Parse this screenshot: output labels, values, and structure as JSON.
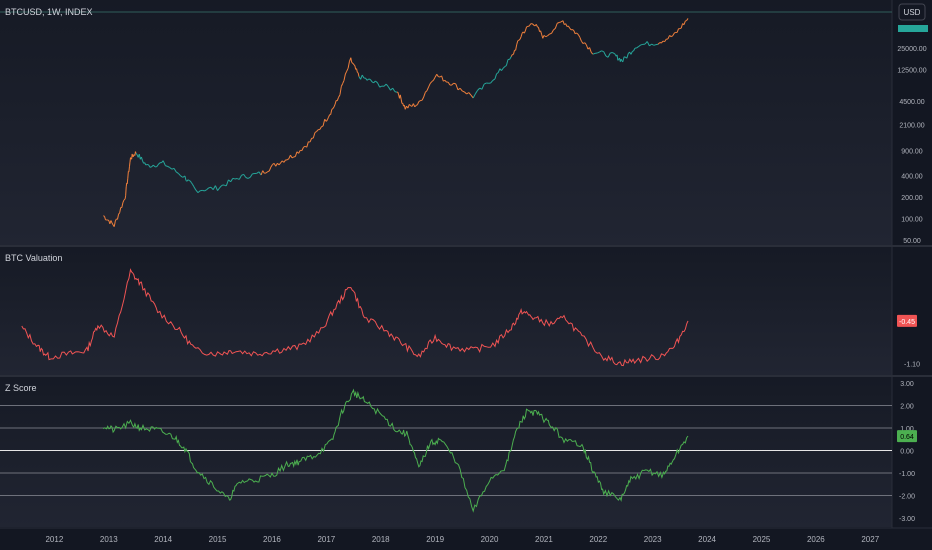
{
  "header": {
    "symbol": "BTCUSD, 1W, INDEX",
    "currency": "USD"
  },
  "colors": {
    "background": "#161a25",
    "pane_bg_top": "#1b1f2b",
    "grid": "#2a2e39",
    "axis_text": "#b2b5be",
    "price_warm": "#f0803c",
    "price_cool": "#26a69a",
    "valuation_line": "#f05454",
    "zscore_line": "#4caf50",
    "level_lines": "#8a8d96",
    "zero_line": "#e6e6e6",
    "badge_red": "#f05454",
    "badge_green": "#4caf50",
    "last_price_bar": "#26a69a"
  },
  "x_axis": {
    "tick_labels": [
      "2012",
      "2013",
      "2014",
      "2015",
      "2016",
      "2017",
      "2018",
      "2019",
      "2020",
      "2021",
      "2022",
      "2023",
      "2024",
      "2025",
      "2026",
      "2027"
    ]
  },
  "chart_data": [
    {
      "type": "line",
      "title": "BTCUSD, 1W, INDEX",
      "scale": "log",
      "y_tick_labels": [
        "25000.00",
        "12500.00",
        "4500.00",
        "2100.00",
        "900.00",
        "400.00",
        "200.00",
        "100.00",
        "50.00"
      ],
      "series": [
        {
          "x": [
            2013.4,
            2013.6,
            2013.8,
            2013.9,
            2014.0,
            2014.2,
            2014.5,
            2014.9,
            2015.1,
            2015.5,
            2015.9,
            2016.3,
            2016.6,
            2016.9,
            2017.2,
            2017.5,
            2017.7,
            2017.95,
            2018.1,
            2018.4,
            2018.8,
            2018.95,
            2019.2,
            2019.5,
            2019.8,
            2020.2,
            2020.6,
            2020.9,
            2021.1,
            2021.3,
            2021.5,
            2021.85,
            2022.1,
            2022.4,
            2022.8,
            2022.95,
            2023.2,
            2023.6,
            2023.9,
            2024.15
          ],
          "y": [
            110,
            80,
            200,
            700,
            850,
            550,
            600,
            380,
            250,
            270,
            380,
            430,
            600,
            780,
            1200,
            2500,
            4500,
            17000,
            10000,
            8000,
            6300,
            3600,
            4100,
            10500,
            8000,
            5200,
            9800,
            18000,
            40000,
            58000,
            35000,
            60000,
            40000,
            22000,
            19500,
            16500,
            27000,
            30000,
            38000,
            65000
          ]
        }
      ]
    },
    {
      "type": "line",
      "title": "BTC Valuation",
      "y_tick_labels": [
        "-1.10"
      ],
      "last_value_label": "-0.45",
      "series": [
        {
          "x": [
            2011.9,
            2012.2,
            2012.4,
            2012.8,
            2013.1,
            2013.3,
            2013.6,
            2013.9,
            2014.1,
            2014.4,
            2014.8,
            2015.1,
            2015.5,
            2015.8,
            2016.2,
            2016.6,
            2017.0,
            2017.4,
            2017.7,
            2017.95,
            2018.2,
            2018.6,
            2018.9,
            2019.2,
            2019.5,
            2019.8,
            2020.2,
            2020.6,
            2020.9,
            2021.1,
            2021.3,
            2021.6,
            2021.9,
            2022.2,
            2022.6,
            2022.9,
            2023.2,
            2023.6,
            2023.9,
            2024.15
          ],
          "y": [
            -0.55,
            -0.85,
            -1.0,
            -0.95,
            -0.9,
            -0.5,
            -0.7,
            0.3,
            0.1,
            -0.3,
            -0.6,
            -0.9,
            -0.95,
            -0.9,
            -0.95,
            -0.9,
            -0.85,
            -0.6,
            -0.2,
            0.1,
            -0.4,
            -0.6,
            -0.8,
            -1.0,
            -0.7,
            -0.85,
            -0.9,
            -0.8,
            -0.55,
            -0.3,
            -0.4,
            -0.5,
            -0.4,
            -0.7,
            -1.0,
            -1.1,
            -1.05,
            -1.0,
            -0.85,
            -0.45
          ]
        }
      ]
    },
    {
      "type": "line",
      "title": "Z Score",
      "y_tick_labels": [
        "3.00",
        "2.00",
        "1.00",
        "0.00",
        "-1.00",
        "-2.00",
        "-3.00"
      ],
      "ylim": [
        -3,
        3
      ],
      "reference_levels": [
        2,
        1,
        0,
        -1,
        -2
      ],
      "last_value_label": "0.64",
      "series": [
        {
          "x": [
            2013.4,
            2013.6,
            2013.9,
            2014.1,
            2014.4,
            2014.7,
            2014.9,
            2015.1,
            2015.4,
            2015.7,
            2015.9,
            2016.2,
            2016.5,
            2016.8,
            2017.0,
            2017.3,
            2017.6,
            2017.8,
            2018.0,
            2018.2,
            2018.5,
            2018.8,
            2019.0,
            2019.2,
            2019.4,
            2019.6,
            2019.9,
            2020.2,
            2020.5,
            2020.8,
            2021.0,
            2021.2,
            2021.4,
            2021.6,
            2021.9,
            2022.2,
            2022.4,
            2022.6,
            2022.9,
            2023.1,
            2023.4,
            2023.7,
            2023.9,
            2024.15
          ],
          "y": [
            1.1,
            0.9,
            1.2,
            1.0,
            0.9,
            0.6,
            0.1,
            -0.8,
            -1.5,
            -2.2,
            -1.4,
            -1.3,
            -1.1,
            -0.6,
            -0.5,
            -0.2,
            0.4,
            1.8,
            2.6,
            2.2,
            1.6,
            0.9,
            0.7,
            -0.8,
            0.3,
            0.5,
            -0.5,
            -2.7,
            -1.3,
            -0.7,
            0.9,
            1.8,
            1.6,
            1.2,
            0.4,
            0.3,
            -0.9,
            -1.8,
            -2.2,
            -1.3,
            -0.9,
            -1.1,
            -0.3,
            0.64
          ]
        }
      ]
    }
  ]
}
